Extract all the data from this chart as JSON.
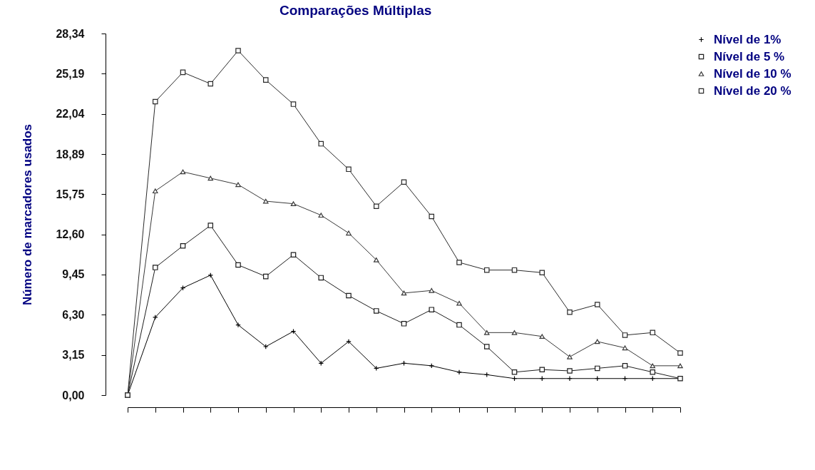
{
  "chart_data": {
    "type": "line",
    "title": "Comparações Múltiplas",
    "ylabel": "Número de marcadores usados",
    "categories": [
      null,
      null,
      null,
      null,
      null,
      null,
      null,
      null,
      null,
      null,
      null,
      null,
      null,
      null,
      null,
      null,
      null,
      null,
      null,
      null,
      null
    ],
    "ylim": [
      0,
      28.34
    ],
    "yticks": [
      {
        "value": 0,
        "label": "0,00"
      },
      {
        "value": 3.15,
        "label": "3,15"
      },
      {
        "value": 6.3,
        "label": "6,30"
      },
      {
        "value": 9.45,
        "label": "9,45"
      },
      {
        "value": 12.6,
        "label": "12,60"
      },
      {
        "value": 15.75,
        "label": "15,75"
      },
      {
        "value": 18.89,
        "label": "18,89"
      },
      {
        "value": 22.04,
        "label": "22,04"
      },
      {
        "value": 25.19,
        "label": "25,19"
      },
      {
        "value": 28.34,
        "label": "28,34"
      }
    ],
    "grid": false,
    "legend": "top right",
    "tick_labels": "y",
    "line_style": "solid",
    "series": [
      {
        "name": "Nível de 1%",
        "color": "#000000",
        "marker": "cross",
        "values": [
          0,
          6.1,
          8.4,
          9.4,
          5.5,
          3.8,
          5.0,
          2.5,
          4.2,
          2.1,
          2.5,
          2.3,
          1.8,
          1.6,
          1.3,
          1.3,
          1.3,
          1.3,
          1.3,
          1.3,
          1.3
        ]
      },
      {
        "name": "Nível de 5 %",
        "color": "#1c1c1c",
        "marker": "square",
        "values": [
          0,
          10.0,
          11.7,
          13.3,
          10.2,
          9.3,
          11.0,
          9.2,
          7.8,
          6.6,
          5.6,
          6.7,
          5.5,
          3.8,
          1.8,
          2.0,
          1.9,
          2.1,
          2.3,
          1.8,
          1.3
        ]
      },
      {
        "name": "Nível de 10 %",
        "color": "#383838",
        "marker": "triangle",
        "values": [
          0,
          16.0,
          17.5,
          17.0,
          16.5,
          15.2,
          15.0,
          14.1,
          12.7,
          10.6,
          8.0,
          8.2,
          7.2,
          4.9,
          4.9,
          4.6,
          3.0,
          4.2,
          3.7,
          2.3,
          2.3
        ]
      },
      {
        "name": "Nível de 20 %",
        "color": "#2a2a2a",
        "marker": "square",
        "values": [
          0,
          23.0,
          25.3,
          24.4,
          27.0,
          24.7,
          22.8,
          19.7,
          17.7,
          14.8,
          16.7,
          14.0,
          10.4,
          9.8,
          9.8,
          9.6,
          6.5,
          7.1,
          4.7,
          4.9,
          3.3
        ]
      }
    ]
  }
}
